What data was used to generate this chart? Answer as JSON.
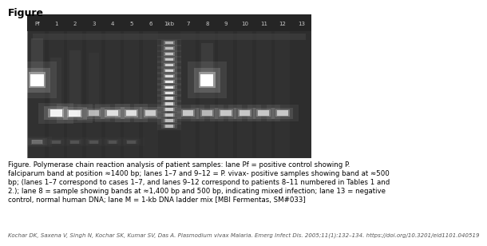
{
  "title": "Figure",
  "title_fontsize": 9,
  "title_fontweight": "bold",
  "caption_line1": "Figure. Polymerase chain reaction analysis of patient samples: lane Pf = positive control showing P.",
  "caption_line2": "falciparum band at position ≈1400 bp; lanes 1–7 and 9–12 = P. vivax- positive samples showing band at ≈500",
  "caption_line3": "bp; (lanes 1–7 correspond to cases 1–7, and lanes 9–12 correspond to patients 8–11 numbered in Tables 1 and",
  "caption_line4": "2.); lane 8 = sample showing bands at ≈1,400 bp and 500 bp, indicating mixed infection; lane 13 = negative",
  "caption_line5": "control, normal human DNA; lane M = 1-kb DNA ladder mix [MBI Fermentas, SM#033]",
  "citation": "Kochar DK, Saxena V, Singh N, Kochar SK, Kumar SV, Das A. Plasmodium vivax Malaria. Emerg Infect Dis. 2005;11(1):132–134. https://doi.org/10.3201/eid1101.040519",
  "caption_fontsize": 6.2,
  "citation_fontsize": 5.0,
  "lane_labels": [
    "Pf",
    "1",
    "2",
    "3",
    "4",
    "5",
    "6",
    "1kb",
    "7",
    "8",
    "9",
    "10",
    "11",
    "12",
    "13"
  ],
  "label_fontsize": 5.0,
  "fig_bg": "#ffffff",
  "gel_bg_color": "#3a3a3a",
  "gel_border_color": "#888888"
}
